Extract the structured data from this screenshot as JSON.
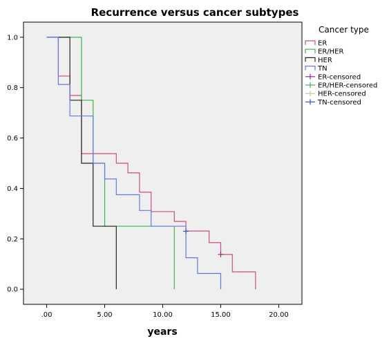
{
  "chart_data": {
    "type": "line",
    "title": "Recurrence versus cancer subtypes",
    "xlabel": "years",
    "ylabel": "",
    "xlim": [
      -2,
      22
    ],
    "ylim": [
      -0.06,
      1.06
    ],
    "x_ticks": [
      0,
      5,
      10,
      15,
      20
    ],
    "x_tick_labels": [
      ".00",
      "5.00",
      "10.00",
      "15.00",
      "20.00"
    ],
    "y_ticks": [
      0,
      0.2,
      0.4,
      0.6,
      0.8,
      1.0
    ],
    "y_tick_labels": [
      "0.0",
      "0.2",
      "0.4",
      "0.6",
      "0.8",
      "1.0"
    ],
    "grid": false,
    "legend_position": "right",
    "legend_title": "Cancer type",
    "legend_entries": [
      "ER",
      "ER/HER",
      "HER",
      "TN",
      "ER-censored",
      "ER/HER-censored",
      "HER-censored",
      "TN-censored"
    ],
    "series": [
      {
        "name": "ER",
        "color": "#c94d86",
        "x": [
          0,
          1,
          2,
          3,
          5,
          6,
          7,
          8,
          9,
          11,
          12,
          14,
          15,
          16,
          18
        ],
        "y": [
          1.0,
          0.846,
          0.769,
          0.538,
          0.538,
          0.5,
          0.462,
          0.385,
          0.308,
          0.269,
          0.231,
          0.185,
          0.138,
          0.069,
          0.0
        ],
        "censored_x": [
          15
        ],
        "censored_y": [
          0.138
        ],
        "censored_color": "#8a2f88"
      },
      {
        "name": "ER/HER",
        "color": "#3cb44b",
        "x": [
          0,
          3,
          4,
          5,
          11
        ],
        "y": [
          1.0,
          0.75,
          0.5,
          0.25,
          0.0
        ],
        "censored_x": [],
        "censored_y": [],
        "censored_color": "#3cb44b"
      },
      {
        "name": "HER",
        "color": "#222222",
        "x": [
          0,
          2,
          3,
          4,
          6
        ],
        "y": [
          1.0,
          0.75,
          0.5,
          0.25,
          0.0
        ],
        "censored_x": [],
        "censored_y": [],
        "censored_color": "#c8c896"
      },
      {
        "name": "TN",
        "color": "#6677e8",
        "x": [
          0,
          1,
          2,
          4,
          5,
          6,
          8,
          9,
          12,
          13,
          15
        ],
        "y": [
          1.0,
          0.8125,
          0.6875,
          0.5,
          0.4375,
          0.375,
          0.3125,
          0.25,
          0.125,
          0.0625,
          0.0
        ],
        "censored_x": [
          12
        ],
        "censored_y": [
          0.23
        ],
        "censored_color": "#3a55c0"
      }
    ]
  }
}
